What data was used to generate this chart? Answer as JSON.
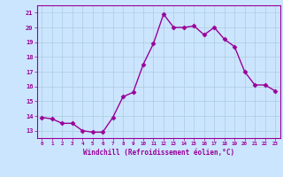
{
  "x": [
    0,
    1,
    2,
    3,
    4,
    5,
    6,
    7,
    8,
    9,
    10,
    11,
    12,
    13,
    14,
    15,
    16,
    17,
    18,
    19,
    20,
    21,
    22,
    23
  ],
  "y": [
    13.9,
    13.8,
    13.5,
    13.5,
    13.0,
    12.9,
    12.9,
    13.9,
    15.3,
    15.6,
    17.5,
    18.9,
    20.9,
    20.0,
    20.0,
    20.1,
    19.5,
    20.0,
    19.2,
    18.7,
    17.0,
    16.1,
    16.1,
    15.7
  ],
  "line_color": "#990099",
  "marker": "D",
  "marker_size": 2.5,
  "bg_color": "#cce5ff",
  "grid_color": "#aaccdd",
  "xlabel": "Windchill (Refroidissement éolien,°C)",
  "xlabel_color": "#990099",
  "tick_color": "#990099",
  "ylim": [
    12.5,
    21.5
  ],
  "xlim": [
    -0.5,
    23.5
  ],
  "yticks": [
    13,
    14,
    15,
    16,
    17,
    18,
    19,
    20,
    21
  ],
  "xticks": [
    0,
    1,
    2,
    3,
    4,
    5,
    6,
    7,
    8,
    9,
    10,
    11,
    12,
    13,
    14,
    15,
    16,
    17,
    18,
    19,
    20,
    21,
    22,
    23
  ],
  "spine_color": "#990099",
  "line_width": 1.0
}
